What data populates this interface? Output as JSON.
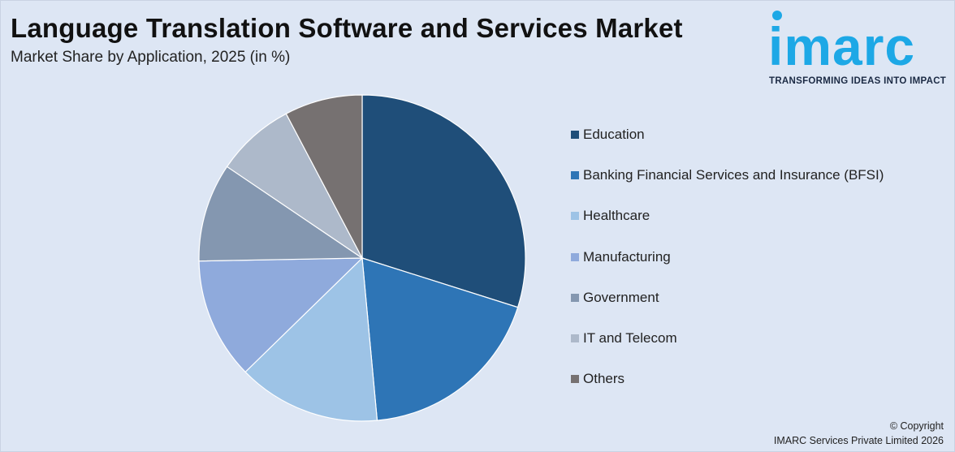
{
  "header": {
    "title": "Language Translation Software and Services Market",
    "subtitle": "Market Share by Application, 2025 (in %)"
  },
  "logo": {
    "wordmark": "imarc",
    "tagline": "TRANSFORMING IDEAS INTO IMPACT",
    "color": "#1da8e6"
  },
  "chart_data": {
    "type": "pie",
    "start_angle_deg": 0,
    "direction": "clockwise",
    "legend_position": "right",
    "slices": [
      {
        "label": "Education",
        "value": 30.6,
        "color": "#1f4e79"
      },
      {
        "label": "Banking Financial Services and Insurance (BFSI)",
        "value": 19.1,
        "color": "#2e75b6"
      },
      {
        "label": "Healthcare",
        "value": 14.5,
        "color": "#9dc3e6"
      },
      {
        "label": "Manufacturing",
        "value": 12.3,
        "color": "#8faadc"
      },
      {
        "label": "Government",
        "value": 10.0,
        "color": "#8497b0"
      },
      {
        "label": "IT and Telecom",
        "value": 8.0,
        "color": "#adb9ca"
      },
      {
        "label": "Others",
        "value": 7.9,
        "color": "#767171"
      }
    ]
  },
  "footer": {
    "copyright_line1": "© Copyright",
    "copyright_line2": "IMARC Services Private Limited 2026"
  }
}
